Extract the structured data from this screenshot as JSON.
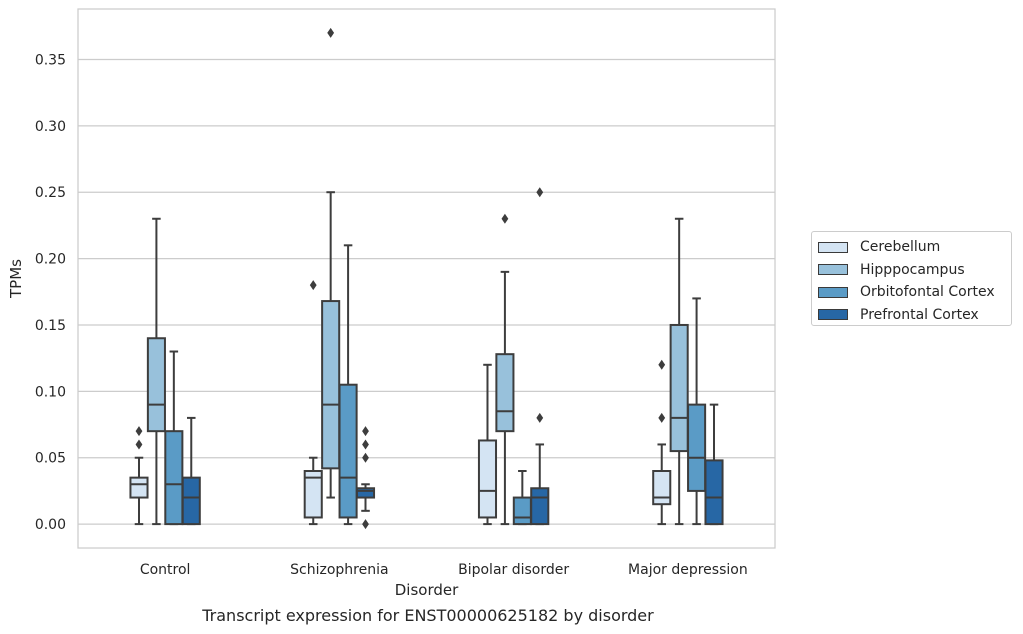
{
  "chart_data": {
    "type": "boxplot",
    "xlabel": "Disorder",
    "ylabel": "TPMs",
    "ylim": [
      -0.018,
      0.388
    ],
    "yticks": [
      "0.00",
      "0.05",
      "0.10",
      "0.15",
      "0.20",
      "0.25",
      "0.30",
      "0.35"
    ],
    "categories": [
      "Control",
      "Schizophrenia",
      "Bipolar disorder",
      "Major depression"
    ],
    "grid": "horizontal",
    "legend_position": "right",
    "series": [
      {
        "name": "Cerebellum",
        "color": "#d4e4f3",
        "boxes": [
          {
            "whislo": 0.0,
            "q1": 0.02,
            "med": 0.03,
            "q3": 0.035,
            "whishi": 0.05,
            "fliers": [
              0.06,
              0.07
            ]
          },
          {
            "whislo": 0.0,
            "q1": 0.005,
            "med": 0.035,
            "q3": 0.04,
            "whishi": 0.05,
            "fliers": [
              0.18
            ]
          },
          {
            "whislo": 0.0,
            "q1": 0.005,
            "med": 0.025,
            "q3": 0.063,
            "whishi": 0.12,
            "fliers": []
          },
          {
            "whislo": 0.0,
            "q1": 0.015,
            "med": 0.02,
            "q3": 0.04,
            "whishi": 0.06,
            "fliers": [
              0.08,
              0.12
            ]
          }
        ]
      },
      {
        "name": "Hipppocampus",
        "color": "#98c1db",
        "boxes": [
          {
            "whislo": 0.0,
            "q1": 0.07,
            "med": 0.09,
            "q3": 0.14,
            "whishi": 0.23,
            "fliers": []
          },
          {
            "whislo": 0.02,
            "q1": 0.042,
            "med": 0.09,
            "q3": 0.168,
            "whishi": 0.25,
            "fliers": [
              0.37
            ]
          },
          {
            "whislo": 0.0,
            "q1": 0.07,
            "med": 0.085,
            "q3": 0.128,
            "whishi": 0.19,
            "fliers": [
              0.23
            ]
          },
          {
            "whislo": 0.0,
            "q1": 0.055,
            "med": 0.08,
            "q3": 0.15,
            "whishi": 0.23,
            "fliers": []
          }
        ]
      },
      {
        "name": "Orbitofontal Cortex",
        "color": "#5a9bc6",
        "boxes": [
          {
            "whislo": 0.0,
            "q1": 0.0,
            "med": 0.03,
            "q3": 0.07,
            "whishi": 0.13,
            "fliers": []
          },
          {
            "whislo": 0.0,
            "q1": 0.005,
            "med": 0.035,
            "q3": 0.105,
            "whishi": 0.21,
            "fliers": []
          },
          {
            "whislo": 0.0,
            "q1": 0.0,
            "med": 0.005,
            "q3": 0.02,
            "whishi": 0.04,
            "fliers": []
          },
          {
            "whislo": 0.0,
            "q1": 0.025,
            "med": 0.05,
            "q3": 0.09,
            "whishi": 0.17,
            "fliers": []
          }
        ]
      },
      {
        "name": "Prefrontal Cortex",
        "color": "#2767a5",
        "boxes": [
          {
            "whislo": 0.0,
            "q1": 0.0,
            "med": 0.02,
            "q3": 0.035,
            "whishi": 0.08,
            "fliers": []
          },
          {
            "whislo": 0.01,
            "q1": 0.02,
            "med": 0.025,
            "q3": 0.027,
            "whishi": 0.03,
            "fliers": [
              0.0,
              0.05,
              0.06,
              0.07
            ]
          },
          {
            "whislo": 0.0,
            "q1": 0.0,
            "med": 0.02,
            "q3": 0.027,
            "whishi": 0.06,
            "fliers": [
              0.08,
              0.25
            ]
          },
          {
            "whislo": 0.0,
            "q1": 0.0,
            "med": 0.02,
            "q3": 0.048,
            "whishi": 0.09,
            "fliers": []
          }
        ]
      }
    ]
  },
  "caption": "Transcript expression for ENST00000625182 by disorder"
}
